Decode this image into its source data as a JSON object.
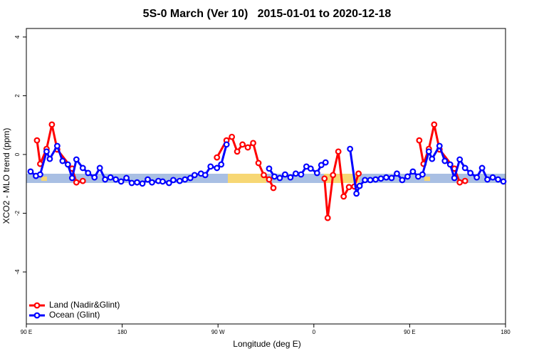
{
  "chart_data": {
    "type": "line",
    "title": "5S-0 March (Ver 10)   2015-01-01 to 2020-12-18",
    "x_label": "Longitude (deg E)",
    "y_label": "XCO2 - MLO trend (ppm)",
    "xlim": [
      90,
      540
    ],
    "ylim": [
      -5.77,
      4.29
    ],
    "xticks": [
      {
        "value": 90,
        "label": "90 E"
      },
      180,
      {
        "value": 270,
        "label": "90 W"
      },
      {
        "value": 360,
        "label": "0"
      },
      {
        "value": 450,
        "label": "90 E"
      },
      {
        "value": 540,
        "label": "180"
      }
    ],
    "yticks": [
      -4,
      -2,
      0,
      2,
      4
    ],
    "legend": "bottom-left",
    "series": [
      {
        "name": "Land (Nadir&Glint)",
        "color": "#ff0000",
        "x": [
          100,
          103,
          109,
          114,
          119,
          133,
          137,
          143,
          200,
          269,
          278,
          283,
          288,
          293,
          298,
          303,
          308,
          313,
          318,
          322,
          350,
          370,
          373,
          378,
          383,
          388,
          393,
          398,
          402,
          450,
          459,
          463,
          468,
          473,
          478,
          492,
          497,
          502
        ],
        "values": [
          0.48,
          -0.32,
          0.19,
          1.02,
          0.17,
          -0.48,
          -0.95,
          -0.9,
          null,
          -0.1,
          0.48,
          0.6,
          0.1,
          0.34,
          0.24,
          0.39,
          -0.29,
          -0.7,
          -0.85,
          -1.14,
          null,
          -0.82,
          -2.16,
          -0.7,
          0.1,
          -1.43,
          -1.11,
          -1.09,
          -0.65,
          null,
          0.48,
          -0.32,
          0.19,
          1.02,
          0.17,
          -0.48,
          -0.95,
          -0.9
        ]
      },
      {
        "name": "Ocean (Glint)",
        "color": "#0000ff",
        "x": [
          94,
          99,
          103,
          109,
          112,
          119,
          124,
          129,
          133,
          137,
          143,
          148,
          154,
          159,
          164,
          169,
          174,
          179,
          184,
          189,
          194,
          199,
          204,
          208,
          214,
          218,
          224,
          228,
          234,
          239,
          244,
          248,
          254,
          258,
          263,
          269,
          273,
          278,
          298,
          318,
          323,
          328,
          333,
          338,
          343,
          348,
          353,
          357,
          363,
          367,
          371,
          382,
          394,
          400,
          403,
          408,
          413,
          418,
          423,
          428,
          433,
          438,
          443,
          448,
          453,
          458,
          462,
          468,
          471,
          478,
          483,
          488,
          492,
          497,
          502,
          507,
          513,
          518,
          523,
          528,
          533,
          538
        ],
        "values": [
          -0.58,
          -0.73,
          -0.68,
          0.1,
          -0.15,
          0.29,
          -0.22,
          -0.34,
          -0.8,
          -0.17,
          -0.46,
          -0.63,
          -0.78,
          -0.46,
          -0.85,
          -0.78,
          -0.85,
          -0.92,
          -0.8,
          -0.97,
          -0.95,
          -0.99,
          -0.85,
          -0.95,
          -0.9,
          -0.92,
          -0.97,
          -0.87,
          -0.9,
          -0.85,
          -0.8,
          -0.7,
          -0.65,
          -0.7,
          -0.41,
          -0.46,
          -0.34,
          0.34,
          null,
          -0.48,
          -0.75,
          -0.8,
          -0.68,
          -0.78,
          -0.65,
          -0.68,
          -0.41,
          -0.48,
          -0.63,
          -0.36,
          -0.27,
          null,
          0.19,
          -1.33,
          -1.07,
          -0.87,
          -0.87,
          -0.85,
          -0.82,
          -0.78,
          -0.8,
          -0.65,
          -0.87,
          -0.75,
          -0.58,
          -0.75,
          -0.68,
          0.1,
          -0.15,
          0.29,
          -0.22,
          -0.34,
          -0.8,
          -0.17,
          -0.46,
          -0.63,
          -0.78,
          -0.46,
          -0.85,
          -0.78,
          -0.85,
          -0.92
        ]
      }
    ]
  }
}
